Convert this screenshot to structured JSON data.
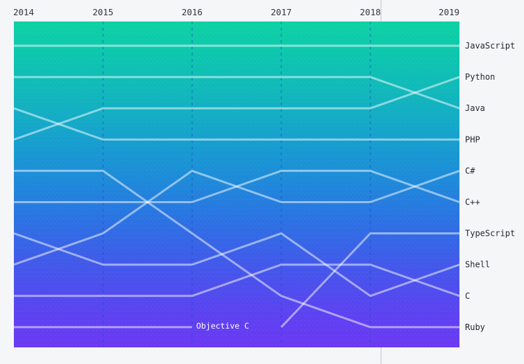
{
  "page": {
    "background": "#f5f6f8"
  },
  "chart_data": {
    "type": "bump",
    "description": "Top programming languages ranked over time",
    "years": [
      2014,
      2015,
      2016,
      2017,
      2018,
      2019
    ],
    "rank_axis": {
      "min": 1,
      "max": 10
    },
    "grid": "dashed-vertical-year-guides",
    "legend_position": "right",
    "series": [
      {
        "name": "JavaScript",
        "ranks": [
          1,
          1,
          1,
          1,
          1,
          1
        ]
      },
      {
        "name": "Python",
        "ranks": [
          4,
          3,
          3,
          3,
          3,
          2
        ]
      },
      {
        "name": "Java",
        "ranks": [
          2,
          2,
          2,
          2,
          2,
          3
        ]
      },
      {
        "name": "PHP",
        "ranks": [
          3,
          4,
          4,
          4,
          4,
          4
        ]
      },
      {
        "name": "C#",
        "ranks": [
          8,
          7,
          5,
          6,
          6,
          5
        ]
      },
      {
        "name": "C++",
        "ranks": [
          6,
          6,
          6,
          5,
          5,
          6
        ]
      },
      {
        "name": "TypeScript",
        "ranks": [
          null,
          null,
          null,
          10,
          7,
          7
        ]
      },
      {
        "name": "Shell",
        "ranks": [
          7,
          8,
          8,
          7,
          9,
          8
        ]
      },
      {
        "name": "C",
        "ranks": [
          9,
          9,
          9,
          8,
          8,
          9
        ]
      },
      {
        "name": "Ruby",
        "ranks": [
          5,
          5,
          7,
          9,
          10,
          10
        ]
      },
      {
        "name": "Objective C",
        "ranks": [
          10,
          10,
          10,
          null,
          null,
          null
        ]
      }
    ],
    "style": {
      "gradient_stops": [
        "#0ed1a4",
        "#0dc6ae",
        "#10bab9",
        "#14abc6",
        "#1899d2",
        "#1f88da",
        "#2a74e2",
        "#3a61e8",
        "#4b50ed",
        "#5d42f1",
        "#6b39f3"
      ],
      "line_color": "rgba(255,255,255,0.5)",
      "guide_color": "rgba(17,80,190,0.45)",
      "crosshair_color": "#d9dce1",
      "axis_text_color": "#30363d",
      "label_text_color": "#24292f",
      "inline_label_color": "#ffffff"
    }
  }
}
